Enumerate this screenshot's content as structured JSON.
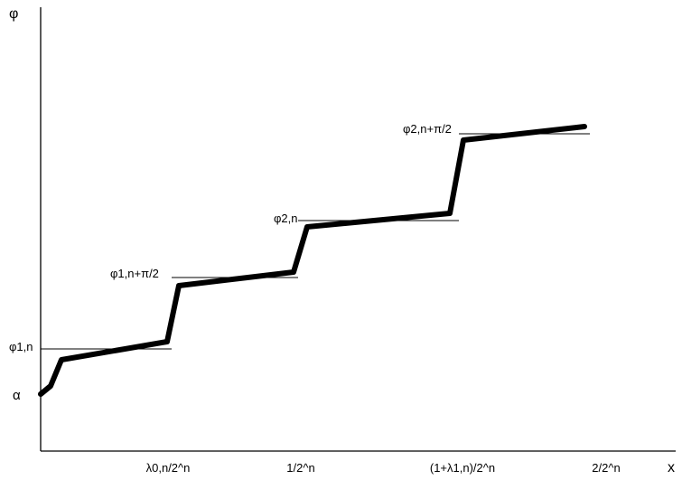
{
  "axes": {
    "x_name": "x",
    "y_name": "φ"
  },
  "x_ticks": [
    "λ0,n/2^n",
    "1/2^n",
    "(1+λ1,n)/2^n",
    "2/2^n"
  ],
  "y_labels": {
    "alpha": "α",
    "phi1": "φ1,n"
  },
  "level_labels": {
    "phi1_plus": "φ1,n+π/2",
    "phi2": "φ2,n",
    "phi2_plus": "φ2,n+π/2"
  },
  "colors": {
    "ink": "#000000",
    "background": "#ffffff"
  }
}
